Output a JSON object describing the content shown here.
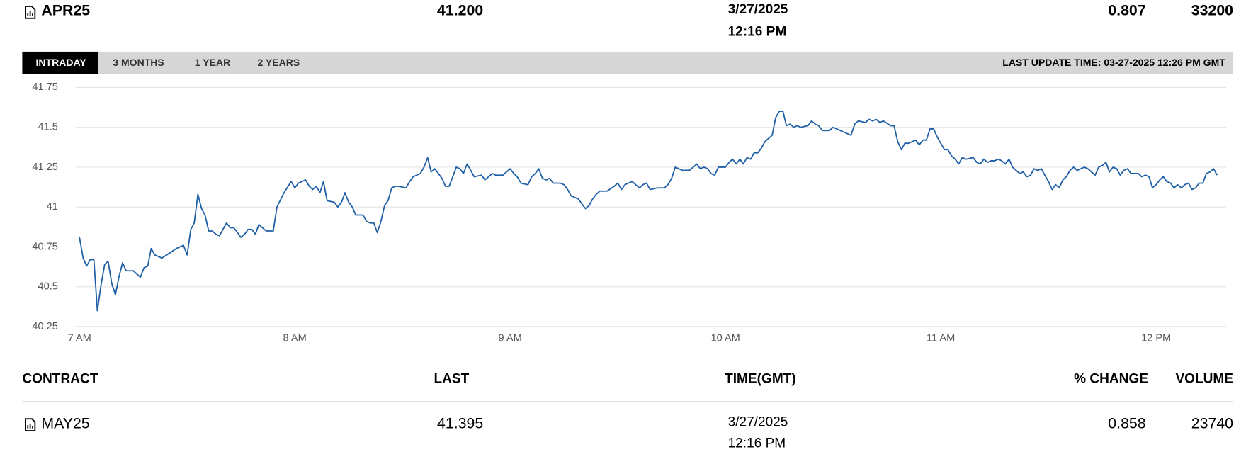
{
  "header": {
    "contract": "APR25",
    "last": "41.200",
    "date": "3/27/2025",
    "time": "12:16 PM",
    "change": "0.807",
    "volume": "33200"
  },
  "tabs": [
    "INTRADAY",
    "3 MONTHS",
    "1 YEAR",
    "2 YEARS"
  ],
  "last_update": "LAST UPDATE TIME: 03-27-2025 12:26 PM GMT",
  "chart_data": {
    "type": "line",
    "color": "#1f5fa6",
    "grid": true,
    "xlim": [
      7,
      12.325
    ],
    "xticks": [
      {
        "value": 7,
        "label": "7 AM"
      },
      {
        "value": 8,
        "label": "8 AM"
      },
      {
        "value": 9,
        "label": "9 AM"
      },
      {
        "value": 10,
        "label": "10 AM"
      },
      {
        "value": 11,
        "label": "11 AM"
      },
      {
        "value": 12,
        "label": "12 PM"
      }
    ],
    "ylim": [
      40.25,
      41.75
    ],
    "yticks": [
      40.25,
      40.5,
      40.75,
      41,
      41.25,
      41.5,
      41.75
    ],
    "x": [
      7,
      7.017,
      7.033,
      7.05,
      7.067,
      7.083,
      7.1,
      7.117,
      7.133,
      7.15,
      7.167,
      7.183,
      7.2,
      7.217,
      7.25,
      7.283,
      7.3,
      7.317,
      7.333,
      7.35,
      7.383,
      7.417,
      7.45,
      7.483,
      7.5,
      7.517,
      7.533,
      7.55,
      7.567,
      7.583,
      7.6,
      7.617,
      7.633,
      7.65,
      7.683,
      7.7,
      7.717,
      7.75,
      7.767,
      7.783,
      7.8,
      7.817,
      7.833,
      7.867,
      7.9,
      7.917,
      7.95,
      7.983,
      8,
      8.017,
      8.05,
      8.067,
      8.083,
      8.1,
      8.117,
      8.133,
      8.15,
      8.183,
      8.2,
      8.217,
      8.233,
      8.25,
      8.267,
      8.283,
      8.317,
      8.333,
      8.35,
      8.367,
      8.383,
      8.4,
      8.417,
      8.433,
      8.45,
      8.467,
      8.483,
      8.517,
      8.533,
      8.55,
      8.583,
      8.6,
      8.617,
      8.633,
      8.65,
      8.667,
      8.683,
      8.7,
      8.717,
      8.75,
      8.767,
      8.783,
      8.8,
      8.817,
      8.833,
      8.867,
      8.883,
      8.9,
      8.917,
      8.933,
      8.967,
      8.983,
      9,
      9.017,
      9.033,
      9.05,
      9.083,
      9.1,
      9.117,
      9.133,
      9.15,
      9.167,
      9.183,
      9.2,
      9.233,
      9.25,
      9.267,
      9.283,
      9.317,
      9.333,
      9.35,
      9.367,
      9.383,
      9.4,
      9.417,
      9.45,
      9.483,
      9.5,
      9.517,
      9.533,
      9.567,
      9.583,
      9.6,
      9.617,
      9.633,
      9.65,
      9.683,
      9.717,
      9.733,
      9.75,
      9.767,
      9.8,
      9.833,
      9.85,
      9.867,
      9.883,
      9.9,
      9.917,
      9.933,
      9.95,
      9.967,
      10,
      10.017,
      10.033,
      10.05,
      10.067,
      10.083,
      10.1,
      10.117,
      10.133,
      10.15,
      10.167,
      10.183,
      10.2,
      10.217,
      10.233,
      10.25,
      10.267,
      10.283,
      10.3,
      10.317,
      10.333,
      10.35,
      10.383,
      10.4,
      10.417,
      10.433,
      10.45,
      10.483,
      10.5,
      10.533,
      10.55,
      10.583,
      10.6,
      10.617,
      10.65,
      10.667,
      10.683,
      10.7,
      10.717,
      10.733,
      10.767,
      10.783,
      10.8,
      10.817,
      10.833,
      10.85,
      10.867,
      10.883,
      10.9,
      10.917,
      10.933,
      10.95,
      10.967,
      10.983,
      11,
      11.017,
      11.033,
      11.05,
      11.067,
      11.083,
      11.1,
      11.117,
      11.15,
      11.167,
      11.183,
      11.2,
      11.217,
      11.233,
      11.25,
      11.267,
      11.283,
      11.3,
      11.317,
      11.333,
      11.35,
      11.367,
      11.383,
      11.4,
      11.417,
      11.433,
      11.45,
      11.467,
      11.483,
      11.5,
      11.517,
      11.533,
      11.55,
      11.567,
      11.583,
      11.6,
      11.617,
      11.633,
      11.65,
      11.667,
      11.683,
      11.7,
      11.717,
      11.733,
      11.75,
      11.767,
      11.783,
      11.8,
      11.817,
      11.833,
      11.85,
      11.867,
      11.883,
      11.917,
      11.933,
      11.95,
      11.967,
      11.983,
      12,
      12.017,
      12.033,
      12.05,
      12.067,
      12.083,
      12.1,
      12.117,
      12.133,
      12.15,
      12.167,
      12.183,
      12.2,
      12.217,
      12.233,
      12.25,
      12.267,
      12.283
    ],
    "values": [
      40.81,
      40.68,
      40.63,
      40.67,
      40.67,
      40.35,
      40.51,
      40.64,
      40.66,
      40.52,
      40.45,
      40.56,
      40.65,
      40.6,
      40.6,
      40.56,
      40.62,
      40.63,
      40.74,
      40.7,
      40.68,
      40.71,
      40.74,
      40.76,
      40.7,
      40.86,
      40.9,
      41.08,
      40.99,
      40.95,
      40.85,
      40.85,
      40.83,
      40.82,
      40.9,
      40.87,
      40.87,
      40.81,
      40.83,
      40.86,
      40.86,
      40.83,
      40.89,
      40.85,
      40.85,
      41,
      41.09,
      41.16,
      41.12,
      41.15,
      41.17,
      41.13,
      41.11,
      41.13,
      41.09,
      41.16,
      41.04,
      41.03,
      41,
      41.03,
      41.09,
      41.03,
      41,
      40.95,
      40.95,
      40.91,
      40.9,
      40.9,
      40.84,
      40.91,
      41.01,
      41.04,
      41.12,
      41.13,
      41.13,
      41.12,
      41.16,
      41.19,
      41.21,
      41.25,
      41.31,
      41.22,
      41.24,
      41.21,
      41.18,
      41.13,
      41.13,
      41.25,
      41.24,
      41.21,
      41.27,
      41.23,
      41.19,
      41.2,
      41.17,
      41.19,
      41.21,
      41.2,
      41.2,
      41.22,
      41.24,
      41.21,
      41.19,
      41.15,
      41.14,
      41.19,
      41.21,
      41.24,
      41.18,
      41.17,
      41.18,
      41.15,
      41.15,
      41.14,
      41.11,
      41.07,
      41.05,
      41.02,
      40.99,
      41.01,
      41.05,
      41.08,
      41.1,
      41.1,
      41.13,
      41.15,
      41.11,
      41.14,
      41.16,
      41.14,
      41.12,
      41.14,
      41.15,
      41.11,
      41.12,
      41.12,
      41.14,
      41.18,
      41.25,
      41.23,
      41.23,
      41.25,
      41.27,
      41.24,
      41.25,
      41.24,
      41.21,
      41.2,
      41.25,
      41.25,
      41.28,
      41.3,
      41.27,
      41.3,
      41.27,
      41.31,
      41.3,
      41.34,
      41.34,
      41.37,
      41.41,
      41.43,
      41.45,
      41.56,
      41.6,
      41.6,
      41.51,
      41.52,
      41.5,
      41.51,
      41.5,
      41.51,
      41.54,
      41.52,
      41.51,
      41.48,
      41.48,
      41.5,
      41.48,
      41.47,
      41.45,
      41.52,
      41.54,
      41.53,
      41.55,
      41.54,
      41.55,
      41.53,
      41.54,
      41.51,
      41.51,
      41.41,
      41.36,
      41.4,
      41.4,
      41.41,
      41.42,
      41.39,
      41.42,
      41.42,
      41.49,
      41.49,
      41.44,
      41.4,
      41.36,
      41.36,
      41.32,
      41.3,
      41.27,
      41.31,
      41.3,
      41.31,
      41.28,
      41.27,
      41.3,
      41.28,
      41.29,
      41.29,
      41.3,
      41.29,
      41.27,
      41.3,
      41.25,
      41.23,
      41.21,
      41.22,
      41.19,
      41.2,
      41.24,
      41.23,
      41.24,
      41.2,
      41.16,
      41.11,
      41.14,
      41.12,
      41.17,
      41.19,
      41.23,
      41.25,
      41.23,
      41.24,
      41.25,
      41.24,
      41.22,
      41.2,
      41.25,
      41.26,
      41.28,
      41.22,
      41.25,
      41.24,
      41.2,
      41.23,
      41.24,
      41.21,
      41.21,
      41.19,
      41.2,
      41.19,
      41.12,
      41.14,
      41.17,
      41.19,
      41.16,
      41.15,
      41.12,
      41.14,
      41.12,
      41.14,
      41.15,
      41.11,
      41.12,
      41.15,
      41.15,
      41.21,
      41.22,
      41.24,
      41.2
    ]
  },
  "table": {
    "columns": [
      "CONTRACT",
      "LAST",
      "TIME(GMT)",
      "% CHANGE",
      "VOLUME"
    ],
    "rows": [
      {
        "contract": "MAY25",
        "last": "41.395",
        "date": "3/27/2025",
        "time": "12:16 PM",
        "change": "0.858",
        "volume": "23740"
      }
    ]
  }
}
